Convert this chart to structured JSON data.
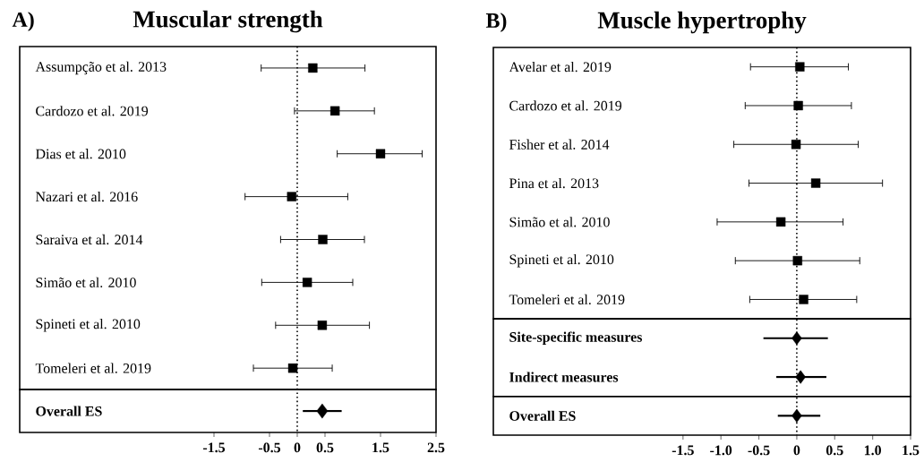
{
  "chart_data": [
    {
      "type": "scatter",
      "orientation": "horizontal",
      "title": "Muscular strength",
      "annotations": [
        "A)"
      ],
      "categories": [
        "Assumpção et al. 2013",
        "Cardozo et al. 2019",
        "Dias et al. 2010",
        "Nazari et al. 2016",
        "Saraiva et al. 2014",
        "Simão et al. 2010",
        "Spineti et al. 2010",
        "Tomeleri et al. 2019",
        "Overall ES"
      ],
      "series": [
        {
          "color": "#000000",
          "marker": "square",
          "values": [
            0.28,
            0.68,
            1.5,
            -0.1,
            0.46,
            0.18,
            0.45,
            -0.08,
            null
          ],
          "errors": [
            [
              -0.65,
              1.22
            ],
            [
              -0.05,
              1.39
            ],
            [
              0.72,
              2.25
            ],
            [
              -0.94,
              0.91
            ],
            [
              -0.3,
              1.21
            ],
            [
              -0.64,
              1.0
            ],
            [
              -0.39,
              1.3
            ],
            [
              -0.79,
              0.63
            ],
            null
          ]
        },
        {
          "color": "#000000",
          "marker": "diamond",
          "values": [
            null,
            null,
            null,
            null,
            null,
            null,
            null,
            null,
            0.45
          ],
          "errors": [
            null,
            null,
            null,
            null,
            null,
            null,
            null,
            null,
            [
              0.1,
              0.8
            ]
          ]
        }
      ],
      "xlim": [
        -5,
        2.5
      ],
      "xticks": [
        -1.5,
        -0.5,
        0,
        0.5,
        1.5,
        2.5
      ],
      "ref_lines": [
        {
          "axis": "x",
          "value": 0,
          "line_style": "dotted"
        }
      ]
    },
    {
      "type": "scatter",
      "orientation": "horizontal",
      "title": "Muscle hypertrophy",
      "annotations": [
        "B)"
      ],
      "categories": [
        "Avelar et al. 2019",
        "Cardozo et al. 2019",
        "Fisher et al. 2014",
        "Pina et al. 2013",
        "Simão et al. 2010",
        "Spineti et al. 2010",
        "Tomeleri et al. 2019",
        "Site-specific measures",
        "Indirect measures",
        "Overall ES"
      ],
      "series": [
        {
          "color": "#000000",
          "marker": "square",
          "values": [
            0.04,
            0.02,
            -0.01,
            0.25,
            -0.21,
            0.01,
            0.09,
            null,
            null,
            null
          ],
          "errors": [
            [
              -0.61,
              0.68
            ],
            [
              -0.68,
              0.72
            ],
            [
              -0.83,
              0.81
            ],
            [
              -0.63,
              1.13
            ],
            [
              -1.05,
              0.61
            ],
            [
              -0.81,
              0.83
            ],
            [
              -0.62,
              0.79
            ],
            null,
            null,
            null
          ]
        },
        {
          "color": "#000000",
          "marker": "diamond",
          "values": [
            null,
            null,
            null,
            null,
            null,
            null,
            null,
            0.0,
            0.05,
            0.0
          ],
          "errors": [
            null,
            null,
            null,
            null,
            null,
            null,
            null,
            [
              -0.44,
              0.41
            ],
            [
              -0.27,
              0.39
            ],
            [
              -0.25,
              0.31
            ]
          ]
        }
      ],
      "xlim": [
        -4,
        1.5
      ],
      "xticks": [
        -1.5,
        {
          "value": -1,
          "label": "-1.0"
        },
        -0.5,
        0,
        0.5,
        {
          "value": 1,
          "label": "1.0"
        },
        1.5
      ],
      "ref_lines": [
        {
          "axis": "x",
          "value": 0,
          "line_style": "dotted"
        }
      ]
    }
  ]
}
